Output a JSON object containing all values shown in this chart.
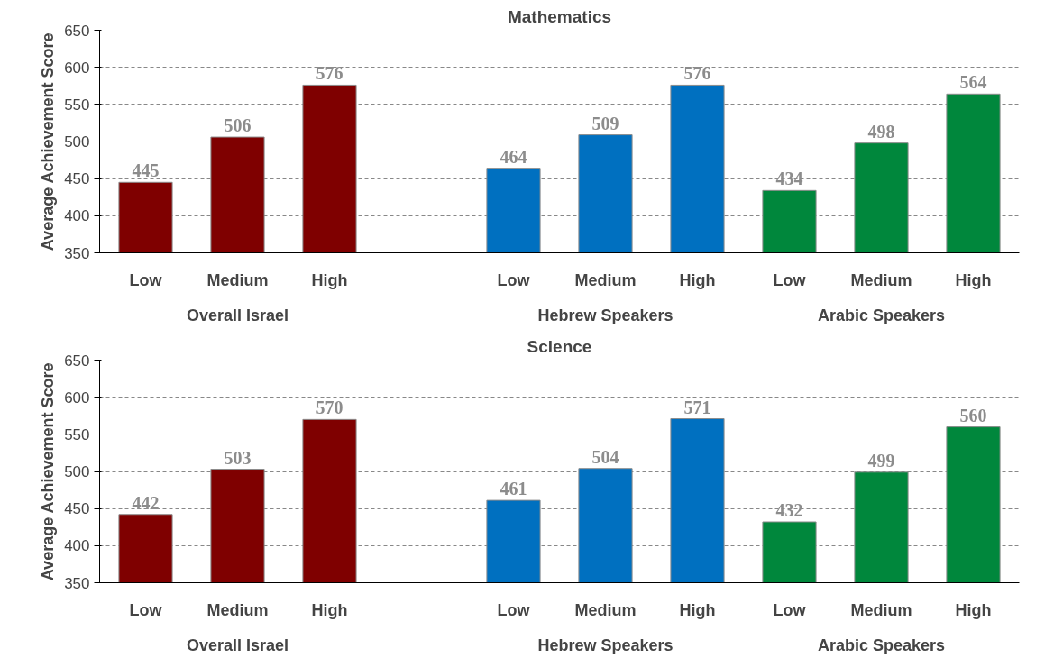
{
  "chart_data": [
    {
      "type": "bar",
      "title": "Mathematics",
      "ylabel": "Average Achievement Score",
      "categories": [
        "Low",
        "Medium",
        "High",
        null,
        "Low",
        "Medium",
        "High",
        "Low",
        "Medium",
        "High"
      ],
      "values": [
        445,
        506,
        576,
        null,
        464,
        509,
        576,
        434,
        498,
        564
      ],
      "colors": [
        "#7f0000",
        "#7f0000",
        "#7f0000",
        "#ffffff",
        "#0070c0",
        "#0070c0",
        "#0070c0",
        "#00873c",
        "#00873c",
        "#00873c"
      ],
      "ylim": [
        350,
        650
      ],
      "yticks": [
        350,
        400,
        450,
        500,
        550,
        600,
        650
      ],
      "grid": "y",
      "data_labels": true,
      "annotations": [
        "Overall Israel",
        "Hebrew Speakers",
        "Arabic Speakers"
      ]
    },
    {
      "type": "bar",
      "title": "Science",
      "ylabel": "Average Achievement Score",
      "categories": [
        "Low",
        "Medium",
        "High",
        null,
        "Low",
        "Medium",
        "High",
        "Low",
        "Medium",
        "High"
      ],
      "values": [
        442,
        503,
        570,
        null,
        461,
        504,
        571,
        432,
        499,
        560
      ],
      "colors": [
        "#7f0000",
        "#7f0000",
        "#7f0000",
        "#ffffff",
        "#0070c0",
        "#0070c0",
        "#0070c0",
        "#00873c",
        "#00873c",
        "#00873c"
      ],
      "ylim": [
        350,
        650
      ],
      "yticks": [
        350,
        400,
        450,
        500,
        550,
        600,
        650
      ],
      "grid": "y",
      "data_labels": true,
      "annotations": [
        "Overall Israel",
        "Hebrew Speakers",
        "Arabic Speakers"
      ]
    }
  ]
}
